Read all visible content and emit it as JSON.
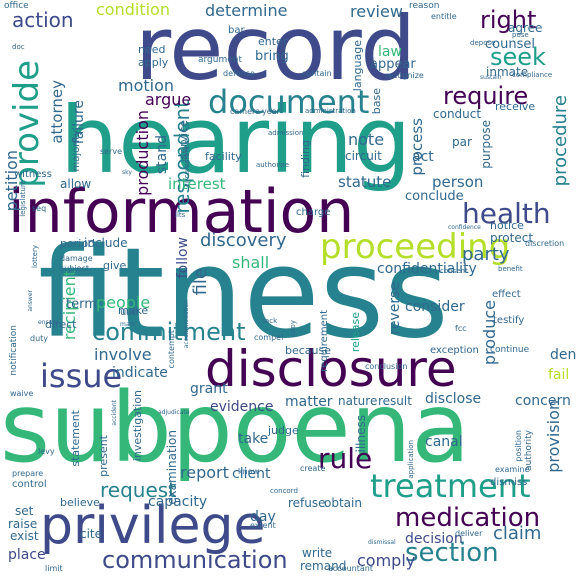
{
  "palette": {
    "purple": "#440154",
    "indigo": "#3e4a89",
    "blue": "#31688e",
    "teal": "#26828e",
    "green": "#1f9e89",
    "lightgreen": "#35b779",
    "lime": "#6ece58",
    "yellow": "#b5de2b"
  },
  "words": [
    "record",
    "hearing",
    "information",
    "fitness",
    "subpoena",
    "disclosure",
    "privilege",
    "proceeding",
    "document",
    "provide",
    "issue",
    "treatment",
    "medication",
    "health",
    "commitment",
    "communication",
    "section",
    "rule",
    "require",
    "respondent",
    "seek",
    "right",
    "action",
    "condition",
    "determine",
    "review",
    "motion",
    "argue",
    "production",
    "petition",
    "attorney",
    "failure",
    "discovery",
    "shall",
    "party",
    "statute",
    "interest",
    "person",
    "process",
    "procedure",
    "request",
    "report",
    "people",
    "recipient",
    "follow",
    "file",
    "confidentiality",
    "produce",
    "decision",
    "claim",
    "comply",
    "investigation",
    "present",
    "matter",
    "nature",
    "result",
    "disclose",
    "concern",
    "consider",
    "reverse",
    "release",
    "evidence",
    "grant",
    "indicate",
    "involve",
    "statement",
    "capacity",
    "client",
    "examination",
    "deny",
    "fail",
    "provision",
    "canal",
    "take",
    "judge",
    "illness",
    "write",
    "remand",
    "cite",
    "place",
    "raise",
    "exist",
    "set",
    "believe",
    "law",
    "counsel",
    "agree",
    "inmate",
    "conduct",
    "receive",
    "par",
    "purpose",
    "act",
    "finding",
    "circuit",
    "note",
    "appear",
    "language",
    "enter",
    "bring",
    "need",
    "apply",
    "make",
    "use",
    "conclude",
    "notice",
    "protect",
    "include",
    "period",
    "term",
    "give",
    "allow",
    "stand",
    "service",
    "facility",
    "base",
    "majority",
    "witness",
    "reason",
    "entitle",
    "office",
    "bar",
    "argument",
    "defense",
    "contain",
    "recognize",
    "administration",
    "admission",
    "circumstance",
    "authorize",
    "charge",
    "exception",
    "continue",
    "conclusion",
    "refuse",
    "obtain",
    "dismiss",
    "examine",
    "authority",
    "position",
    "application",
    "create",
    "know",
    "day",
    "extent",
    "accountant",
    "deliver",
    "prepare",
    "limit",
    "control",
    "direct",
    "duty",
    "effect",
    "testify",
    "copy",
    "benefit",
    "lack",
    "compel",
    "discretion",
    "consent",
    "requirement",
    "because",
    "notification",
    "contempt",
    "damage",
    "subject",
    "seq",
    "doc",
    "pose",
    "compliance",
    "sustain",
    "accommodation",
    "adjudicate",
    "levy",
    "waive",
    "legislature",
    "lottery",
    "depose",
    "answer",
    "camera",
    "year",
    "serve",
    "concord",
    "fcc",
    "sky",
    "ilts",
    "confidence",
    "accident",
    "ensure",
    "mark",
    "dismissal"
  ]
}
